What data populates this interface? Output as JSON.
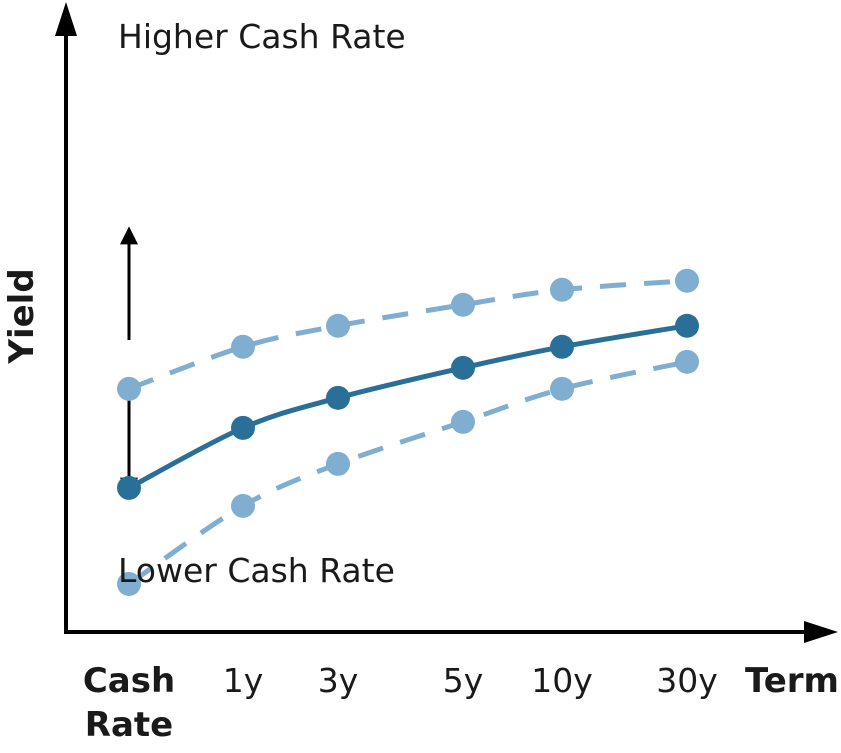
{
  "chart_data": {
    "type": "line",
    "title": "",
    "xlabel": "Term",
    "ylabel": "Yield",
    "categories": [
      "Cash Rate",
      "1y",
      "3y",
      "5y",
      "10y",
      "30y"
    ],
    "category_lines": [
      [
        "Cash"
      ],
      [
        "Rate"
      ]
    ],
    "ylim": [
      0,
      10
    ],
    "grid": false,
    "legend": "none",
    "colors": {
      "main": "#2a6f97",
      "shifted": "#7faed0",
      "axis": "#000000"
    },
    "series": [
      {
        "key": "current",
        "style": "solid",
        "values": [
          2.4,
          3.4,
          3.9,
          4.4,
          4.75,
          5.1
        ]
      },
      {
        "key": "higher",
        "style": "dashed",
        "values": [
          4.05,
          4.75,
          5.1,
          5.45,
          5.7,
          5.85
        ]
      },
      {
        "key": "lower",
        "style": "dashed",
        "values": [
          0.8,
          2.1,
          2.8,
          3.5,
          4.05,
          4.5
        ]
      }
    ],
    "annotations": {
      "higher": "Higher Cash Rate",
      "lower": "Lower Cash Rate"
    }
  }
}
